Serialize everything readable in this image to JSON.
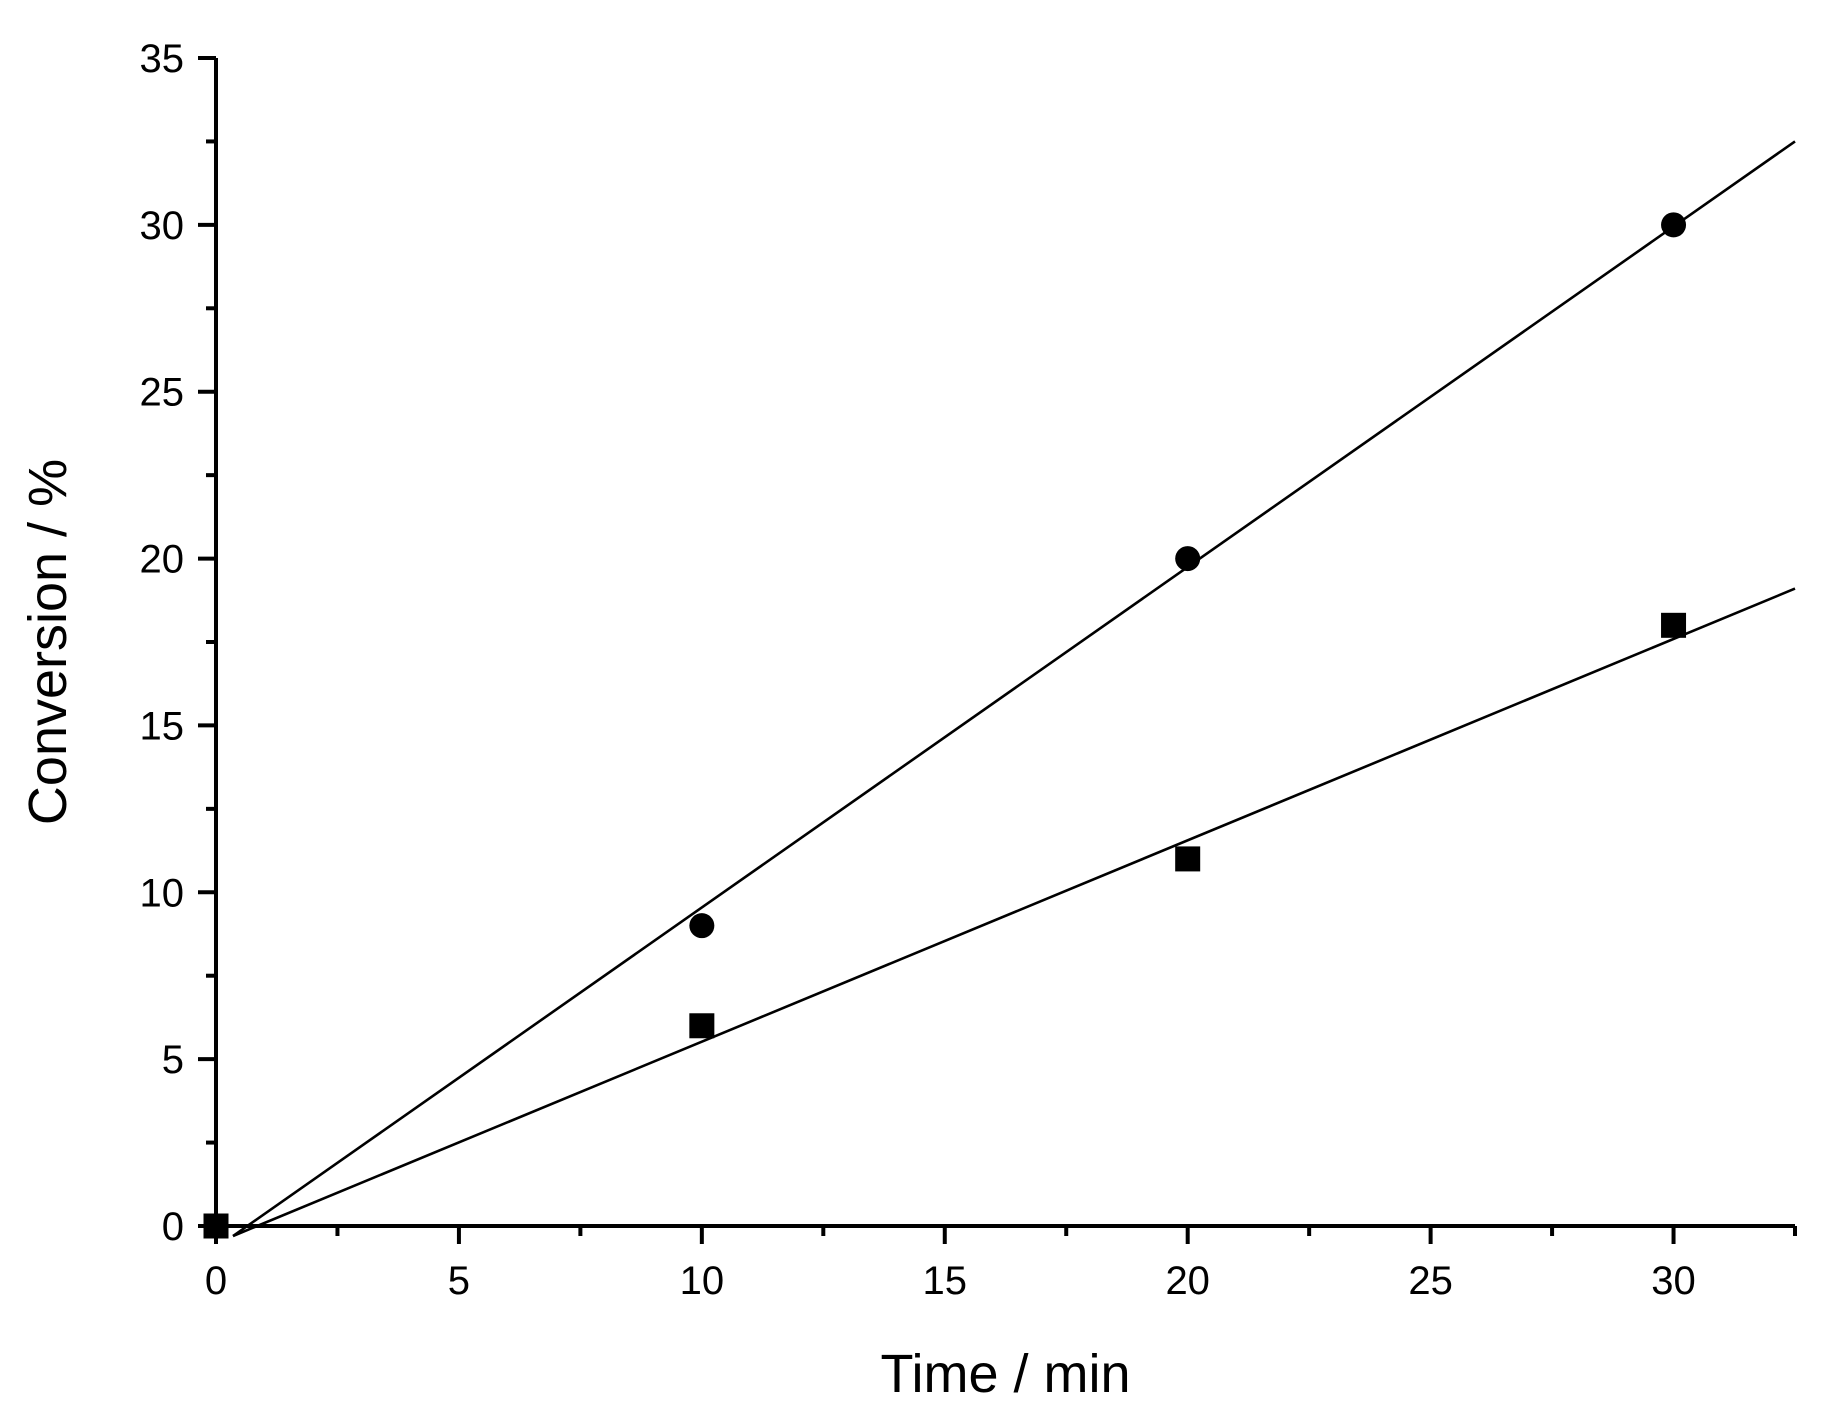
{
  "chart_data": {
    "type": "scatter",
    "title": "",
    "xlabel": "Time / min",
    "ylabel": "Conversion / %",
    "xlim": [
      0,
      32.5
    ],
    "ylim": [
      0,
      35
    ],
    "x_ticks": [
      "0",
      "5",
      "10",
      "15",
      "20",
      "25",
      "30"
    ],
    "y_ticks": [
      "0",
      "5",
      "10",
      "15",
      "20",
      "25",
      "30",
      "35"
    ],
    "grid": false,
    "legend": "none",
    "colors": {
      "marks": "#000000",
      "background": "#ffffff"
    },
    "series": [
      {
        "marker": "circle",
        "points": [
          {
            "x": 0,
            "y": 0
          },
          {
            "x": 10,
            "y": 9
          },
          {
            "x": 20,
            "y": 20
          },
          {
            "x": 30,
            "y": 30
          }
        ],
        "fit_line": {
          "x": [
            0.35,
            32.5
          ],
          "y": [
            -0.3,
            32.5
          ]
        }
      },
      {
        "marker": "square",
        "points": [
          {
            "x": 0,
            "y": 0
          },
          {
            "x": 10,
            "y": 6
          },
          {
            "x": 20,
            "y": 11
          },
          {
            "x": 30,
            "y": 18
          }
        ],
        "fit_line": {
          "x": [
            0.35,
            32.5
          ],
          "y": [
            -0.3,
            19.1
          ]
        }
      }
    ]
  }
}
